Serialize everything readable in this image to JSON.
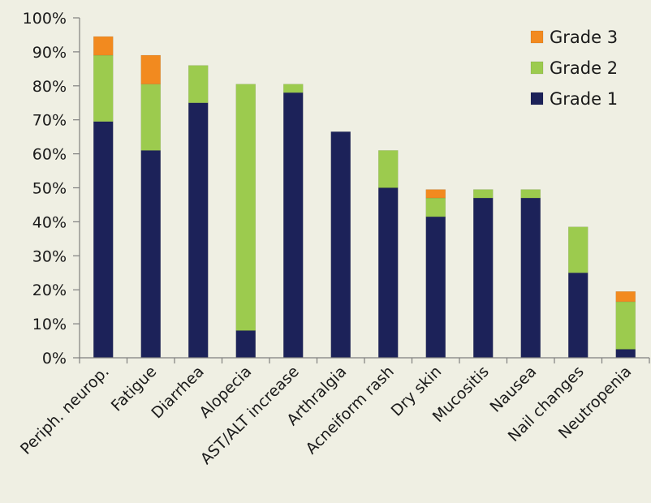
{
  "chart_data": {
    "type": "bar",
    "stacked": true,
    "title": "",
    "xlabel": "",
    "ylabel": "",
    "ylim": [
      0,
      100
    ],
    "y_ticks": [
      0,
      10,
      20,
      30,
      40,
      50,
      60,
      70,
      80,
      90,
      100
    ],
    "y_tick_labels": [
      "0%",
      "10%",
      "20%",
      "30%",
      "40%",
      "50%",
      "60%",
      "70%",
      "80%",
      "90%",
      "100%"
    ],
    "grid": false,
    "legend_position": "top-right",
    "categories": [
      "Periph. neurop.",
      "Fatigue",
      "Diarrhea",
      "Alopecia",
      "AST/ALT increase",
      "Arthralgia",
      "Acneiform rash",
      "Dry skin",
      "Mucositis",
      "Nausea",
      "Nail changes",
      "Neutropenia"
    ],
    "series": [
      {
        "name": "Grade 1",
        "color": "#1c2259",
        "values": [
          69.5,
          61,
          75,
          8,
          78,
          66.5,
          50,
          41.5,
          47,
          47,
          25,
          2.5
        ]
      },
      {
        "name": "Grade 2",
        "color": "#9ccb4e",
        "values": [
          19.5,
          19.5,
          11,
          72.5,
          2.5,
          0,
          11,
          5.5,
          2.5,
          2.5,
          13.5,
          14
        ]
      },
      {
        "name": "Grade 3",
        "color": "#f28a1f",
        "values": [
          5.5,
          8.5,
          0,
          0,
          0,
          0,
          0,
          2.5,
          0,
          0,
          0,
          3
        ]
      }
    ],
    "legend_order": [
      "Grade 3",
      "Grade 2",
      "Grade 1"
    ]
  }
}
